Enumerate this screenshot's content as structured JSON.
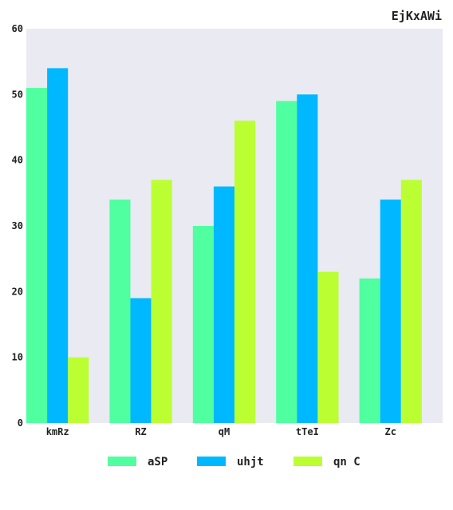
{
  "chart_data": {
    "type": "bar",
    "title": "EjKxAWi",
    "xlabel": "",
    "ylabel": "",
    "categories": [
      "kmRz",
      "RZ",
      "qM",
      "tTeI",
      "Zc"
    ],
    "series": [
      {
        "name": "aSP",
        "color": "#50ffa0",
        "values": [
          51,
          34,
          30,
          49,
          22
        ]
      },
      {
        "name": "uhjt",
        "color": "#00b8ff",
        "values": [
          54,
          19,
          36,
          50,
          34
        ]
      },
      {
        "name": "qn C",
        "color": "#bbff33",
        "values": [
          10,
          37,
          46,
          23,
          37
        ]
      }
    ],
    "ylim": [
      0,
      60
    ],
    "yticks": [
      0,
      10,
      20,
      30,
      40,
      50,
      60
    ],
    "grid": false,
    "legend_position": "bottom-center",
    "plot_background": "#eaeaf2"
  }
}
